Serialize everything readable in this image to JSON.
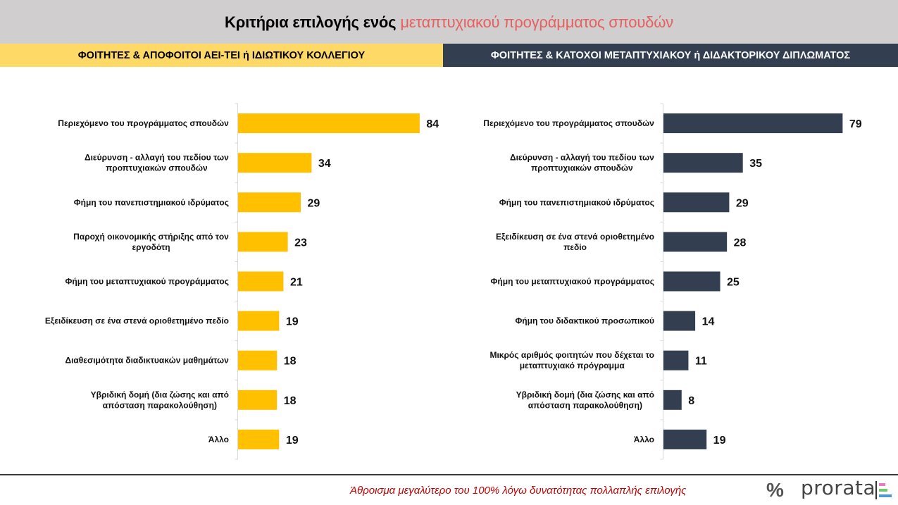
{
  "header": {
    "title_main": "Κριτήρια επιλογής ενός",
    "title_accent": "μεταπτυχιακού προγράμματος σπουδών",
    "accent_color": "#e75f5f"
  },
  "groups": {
    "left": "ΦΟΙΤΗΤΕΣ & ΑΠΟΦΟΙΤΟΙ ΑΕΙ-ΤΕΙ ή ΙΔΙΩΤΙΚΟΥ ΚΟΛΛΕΓΙΟΥ",
    "right": "ΦΟΙΤΗΤΕΣ & ΚΑΤΟΧΟΙ ΜΕΤΑΠΤΥΧΙΑΚΟΥ ή ΔΙΔΑΚΤΟΡΙΚΟΥ ΔΙΠΛΩΜΑΤΟΣ"
  },
  "chart_data": [
    {
      "type": "bar",
      "orientation": "horizontal",
      "title": "ΦΟΙΤΗΤΕΣ & ΑΠΟΦΟΙΤΟΙ ΑΕΙ-ΤΕΙ ή ΙΔΙΩΤΙΚΟΥ ΚΟΛΛΕΓΙΟΥ",
      "color": "#ffc000",
      "xlim": [
        0,
        100
      ],
      "grid": false,
      "categories": [
        [
          "Περιεχόμενο του προγράμματος σπουδών"
        ],
        [
          "Διεύρυνση - αλλαγή του πεδίου των",
          "προπτυχιακών σπουδών"
        ],
        [
          "Φήμη του πανεπιστημιακού ιδρύματος"
        ],
        [
          "Παροχή οικονομικής στήριξης από τον",
          "εργοδότη"
        ],
        [
          "Φήμη του μεταπτυχιακού προγράμματος"
        ],
        [
          "Εξειδίκευση σε ένα στενά οριοθετημένο πεδίο"
        ],
        [
          "Διαθεσιμότητα διαδικτυακών μαθημάτων"
        ],
        [
          "Υβριδική δομή (δια ζώσης και από",
          "απόσταση παρακολούθηση)"
        ],
        [
          "Άλλο"
        ]
      ],
      "values": [
        84,
        34,
        29,
        23,
        21,
        19,
        18,
        18,
        19
      ]
    },
    {
      "type": "bar",
      "orientation": "horizontal",
      "title": "ΦΟΙΤΗΤΕΣ & ΚΑΤΟΧΟΙ ΜΕΤΑΠΤΥΧΙΑΚΟΥ ή ΔΙΔΑΚΤΟΡΙΚΟΥ ΔΙΠΛΩΜΑΤΟΣ",
      "color": "#333f50",
      "xlim": [
        0,
        100
      ],
      "grid": false,
      "categories": [
        [
          "Περιεχόμενο του προγράμματος σπουδών"
        ],
        [
          "Διεύρυνση - αλλαγή του πεδίου των",
          "προπτυχιακών σπουδών"
        ],
        [
          "Φήμη του πανεπιστημιακού ιδρύματος"
        ],
        [
          "Εξειδίκευση σε ένα στενά οριοθετημένο",
          "πεδίο"
        ],
        [
          "Φήμη του μεταπτυχιακού προγράμματος"
        ],
        [
          "Φήμη του διδακτικού προσωπικού"
        ],
        [
          "Μικρός αριθμός φοιτητών που δέχεται το",
          "μεταπτυχιακό πρόγραμμα"
        ],
        [
          "Υβριδική δομή (δια ζώσης και από",
          "απόσταση παρακολούθηση)"
        ],
        [
          "Άλλο"
        ]
      ],
      "values": [
        79,
        35,
        29,
        28,
        25,
        14,
        11,
        8,
        19
      ]
    }
  ],
  "footer": {
    "note": "Άθροισμα μεγαλύτερο του 100% λόγω δυνατότητας πολλαπλής επιλογής",
    "percent_symbol": "%",
    "brand": "prorata",
    "brand_colors": [
      "#e879c6",
      "#70c870",
      "#4b9ad6"
    ]
  }
}
